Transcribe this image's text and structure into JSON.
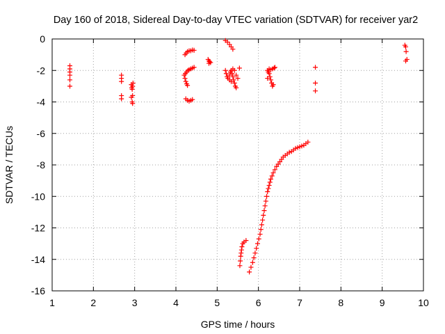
{
  "chart_data": {
    "type": "scatter",
    "title": "Day 160 of 2018, Sidereal Day-to-day VTEC variation (SDTVAR) for receiver yar2",
    "xlabel": "GPS time / hours",
    "ylabel": "SDTVAR / TECUs",
    "xlim": [
      1,
      10
    ],
    "ylim": [
      -16,
      0
    ],
    "xticks": [
      1,
      2,
      3,
      4,
      5,
      6,
      7,
      8,
      9,
      10
    ],
    "yticks": [
      0,
      -2,
      -4,
      -6,
      -8,
      -10,
      -12,
      -14,
      -16
    ],
    "xtick_labels": [
      "1",
      "2",
      "3",
      "4",
      "5",
      "6",
      "7",
      "8",
      "9",
      "10"
    ],
    "ytick_labels": [
      "0",
      "-2",
      "-4",
      "-6",
      "-8",
      "-10",
      "-12",
      "-14",
      "-16"
    ],
    "grid": true,
    "marker": "+",
    "color": "#ff0000",
    "series": [
      {
        "name": "SDTVAR",
        "points": [
          [
            1.43,
            -1.7
          ],
          [
            1.43,
            -1.9
          ],
          [
            1.43,
            -2.1
          ],
          [
            1.43,
            -2.3
          ],
          [
            1.43,
            -2.6
          ],
          [
            1.43,
            -3.0
          ],
          [
            2.68,
            -2.3
          ],
          [
            2.68,
            -2.5
          ],
          [
            2.68,
            -2.7
          ],
          [
            2.68,
            -3.6
          ],
          [
            2.68,
            -3.8
          ],
          [
            2.92,
            -2.9
          ],
          [
            2.95,
            -3.0
          ],
          [
            2.93,
            -3.1
          ],
          [
            2.96,
            -2.8
          ],
          [
            2.94,
            -3.2
          ],
          [
            2.95,
            -3.6
          ],
          [
            2.92,
            -3.7
          ],
          [
            2.94,
            -4.0
          ],
          [
            2.95,
            -4.1
          ],
          [
            4.22,
            -1.0
          ],
          [
            4.25,
            -0.9
          ],
          [
            4.28,
            -0.8
          ],
          [
            4.32,
            -0.75
          ],
          [
            4.36,
            -0.75
          ],
          [
            4.4,
            -0.7
          ],
          [
            4.44,
            -0.72
          ],
          [
            4.2,
            -2.3
          ],
          [
            4.23,
            -2.2
          ],
          [
            4.26,
            -2.1
          ],
          [
            4.29,
            -2.0
          ],
          [
            4.32,
            -1.95
          ],
          [
            4.36,
            -1.9
          ],
          [
            4.4,
            -1.85
          ],
          [
            4.44,
            -1.8
          ],
          [
            4.22,
            -2.5
          ],
          [
            4.24,
            -2.7
          ],
          [
            4.26,
            -2.85
          ],
          [
            4.28,
            -2.95
          ],
          [
            4.24,
            -3.8
          ],
          [
            4.28,
            -3.9
          ],
          [
            4.32,
            -3.95
          ],
          [
            4.36,
            -3.9
          ],
          [
            4.4,
            -3.85
          ],
          [
            4.78,
            -1.3
          ],
          [
            4.8,
            -1.4
          ],
          [
            4.82,
            -1.45
          ],
          [
            4.84,
            -1.5
          ],
          [
            4.8,
            -1.55
          ],
          [
            5.2,
            -0.1
          ],
          [
            5.25,
            -0.2
          ],
          [
            5.3,
            -0.35
          ],
          [
            5.34,
            -0.5
          ],
          [
            5.38,
            -0.65
          ],
          [
            5.2,
            -2.0
          ],
          [
            5.22,
            -2.2
          ],
          [
            5.24,
            -2.4
          ],
          [
            5.26,
            -2.5
          ],
          [
            5.3,
            -2.3
          ],
          [
            5.32,
            -2.1
          ],
          [
            5.34,
            -2.0
          ],
          [
            5.36,
            -2.2
          ],
          [
            5.38,
            -2.4
          ],
          [
            5.4,
            -2.6
          ],
          [
            5.42,
            -2.8
          ],
          [
            5.44,
            -3.0
          ],
          [
            5.46,
            -3.1
          ],
          [
            5.3,
            -2.6
          ],
          [
            5.34,
            -2.7
          ],
          [
            5.38,
            -1.9
          ],
          [
            5.42,
            -2.0
          ],
          [
            5.46,
            -2.3
          ],
          [
            5.5,
            -2.5
          ],
          [
            5.54,
            -1.85
          ],
          [
            6.22,
            -2.0
          ],
          [
            6.24,
            -2.1
          ],
          [
            6.26,
            -2.2
          ],
          [
            6.28,
            -2.4
          ],
          [
            6.3,
            -2.6
          ],
          [
            6.32,
            -2.8
          ],
          [
            6.34,
            -3.0
          ],
          [
            6.36,
            -2.9
          ],
          [
            6.3,
            -1.95
          ],
          [
            6.34,
            -1.9
          ],
          [
            6.38,
            -1.85
          ],
          [
            6.4,
            -1.8
          ],
          [
            6.26,
            -1.9
          ],
          [
            6.22,
            -2.5
          ],
          [
            7.38,
            -1.8
          ],
          [
            7.38,
            -2.8
          ],
          [
            7.38,
            -3.3
          ],
          [
            9.55,
            -0.4
          ],
          [
            9.57,
            -0.5
          ],
          [
            9.58,
            -0.8
          ],
          [
            9.6,
            -1.3
          ],
          [
            9.57,
            -1.4
          ],
          [
            5.55,
            -14.4
          ],
          [
            5.56,
            -14.1
          ],
          [
            5.57,
            -13.8
          ],
          [
            5.58,
            -13.6
          ],
          [
            5.59,
            -13.4
          ],
          [
            5.6,
            -13.2
          ],
          [
            5.62,
            -13.0
          ],
          [
            5.65,
            -12.9
          ],
          [
            5.7,
            -12.8
          ],
          [
            5.78,
            -14.8
          ],
          [
            5.82,
            -14.5
          ],
          [
            5.86,
            -14.2
          ],
          [
            5.89,
            -13.9
          ],
          [
            5.92,
            -13.6
          ],
          [
            5.95,
            -13.3
          ],
          [
            5.98,
            -13.0
          ],
          [
            6.01,
            -12.7
          ],
          [
            6.04,
            -12.4
          ],
          [
            6.06,
            -12.1
          ],
          [
            6.08,
            -11.8
          ],
          [
            6.1,
            -11.5
          ],
          [
            6.12,
            -11.2
          ],
          [
            6.14,
            -10.9
          ],
          [
            6.16,
            -10.6
          ],
          [
            6.18,
            -10.3
          ],
          [
            6.2,
            -10.0
          ],
          [
            6.22,
            -9.7
          ],
          [
            6.24,
            -9.5
          ],
          [
            6.26,
            -9.3
          ],
          [
            6.28,
            -9.1
          ],
          [
            6.3,
            -8.9
          ],
          [
            6.33,
            -8.7
          ],
          [
            6.36,
            -8.5
          ],
          [
            6.4,
            -8.3
          ],
          [
            6.44,
            -8.1
          ],
          [
            6.48,
            -7.95
          ],
          [
            6.52,
            -7.8
          ],
          [
            6.56,
            -7.65
          ],
          [
            6.6,
            -7.5
          ],
          [
            6.65,
            -7.4
          ],
          [
            6.7,
            -7.3
          ],
          [
            6.75,
            -7.2
          ],
          [
            6.8,
            -7.15
          ],
          [
            6.85,
            -7.05
          ],
          [
            6.9,
            -6.95
          ],
          [
            6.95,
            -6.9
          ],
          [
            7.0,
            -6.85
          ],
          [
            7.05,
            -6.8
          ],
          [
            7.1,
            -6.75
          ],
          [
            7.15,
            -6.65
          ],
          [
            7.2,
            -6.55
          ]
        ]
      }
    ]
  }
}
